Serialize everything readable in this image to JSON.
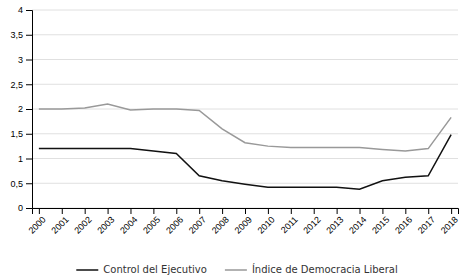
{
  "chart_data": {
    "type": "line",
    "x": [
      2000,
      2001,
      2002,
      2003,
      2004,
      2005,
      2006,
      2007,
      2008,
      2009,
      2010,
      2011,
      2012,
      2013,
      2014,
      2015,
      2016,
      2017,
      2018
    ],
    "series": [
      {
        "name": "Control del Ejecutivo",
        "color": "#111111",
        "values": [
          1.2,
          1.2,
          1.2,
          1.2,
          1.2,
          1.15,
          1.1,
          0.65,
          0.55,
          0.48,
          0.42,
          0.42,
          0.42,
          0.42,
          0.38,
          0.55,
          0.62,
          0.65,
          1.48
        ]
      },
      {
        "name": "Índice de Democracia Liberal",
        "color": "#999999",
        "values": [
          2.0,
          2.0,
          2.02,
          2.1,
          1.98,
          2.0,
          2.0,
          1.97,
          1.6,
          1.32,
          1.25,
          1.22,
          1.22,
          1.22,
          1.22,
          1.18,
          1.15,
          1.2,
          1.83
        ]
      }
    ],
    "xlim": [
      1999.7,
      2018.3
    ],
    "xticks": [
      2000,
      2001,
      2002,
      2003,
      2004,
      2005,
      2006,
      2007,
      2008,
      2009,
      2010,
      2011,
      2012,
      2013,
      2014,
      2015,
      2016,
      2017,
      2018
    ],
    "ylim": [
      0,
      4
    ],
    "yticks": [
      0,
      {
        "value": 0.5,
        "label": "0,5"
      },
      1,
      {
        "value": 1.5,
        "label": "1,5"
      },
      2,
      {
        "value": 2.5,
        "label": "2,5"
      },
      3,
      {
        "value": 3.5,
        "label": "3,5"
      },
      4
    ],
    "grid": "y",
    "legend": "bottom"
  }
}
